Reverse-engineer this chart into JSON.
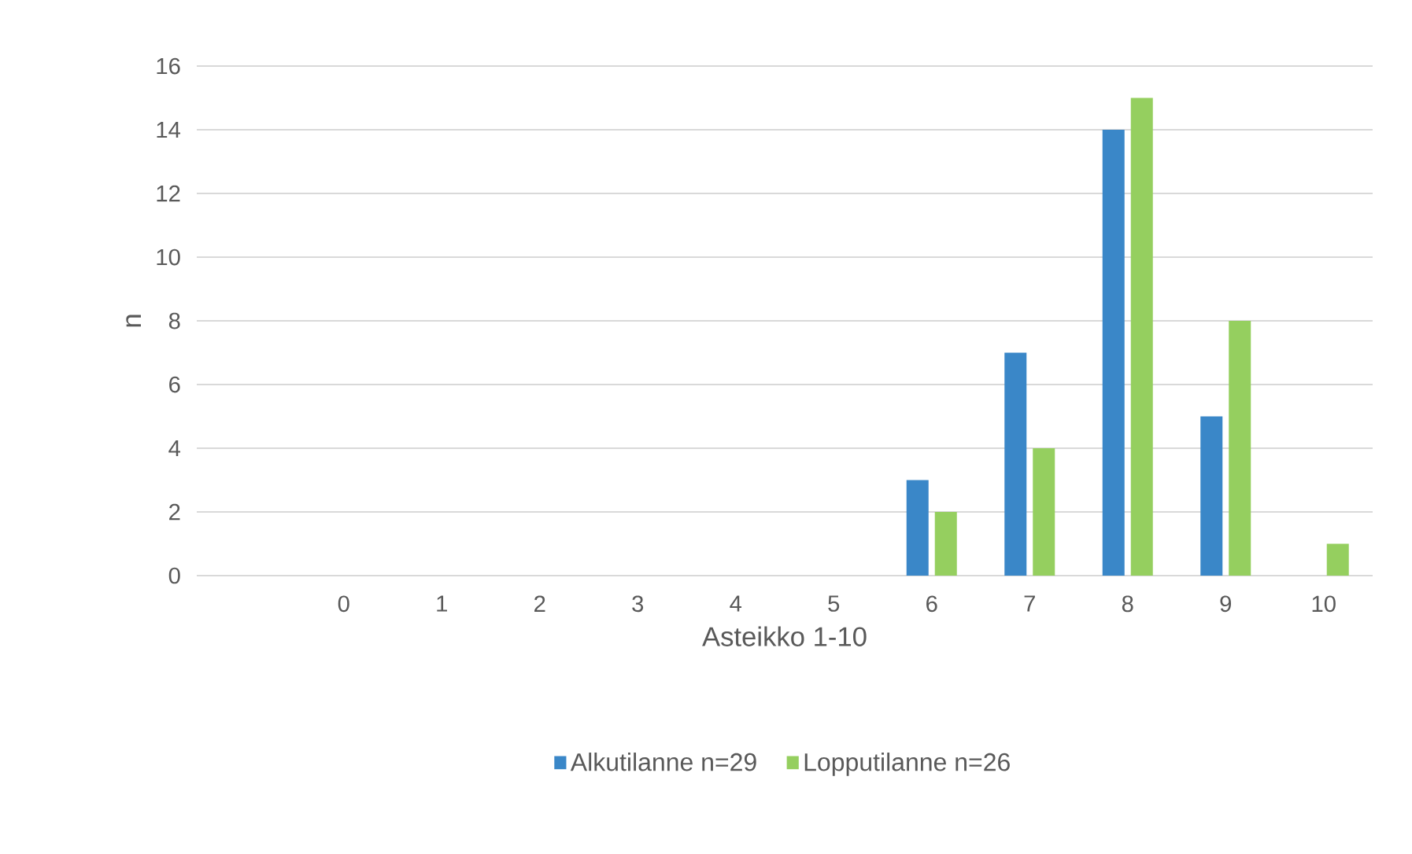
{
  "chart_data": {
    "type": "bar",
    "xlabel": "Asteikko 1-10",
    "ylabel": "n",
    "categories": [
      null,
      "0",
      "1",
      "2",
      "3",
      "4",
      "5",
      "6",
      "7",
      "8",
      "9",
      "10"
    ],
    "series": [
      {
        "name": "Alkutilanne n=29",
        "color": "#3a87c8",
        "values": [
          null,
          0,
          0,
          0,
          0,
          0,
          0,
          3,
          7,
          14,
          5,
          0
        ]
      },
      {
        "name": "Lopputilanne n=26",
        "color": "#95cf5f",
        "values": [
          null,
          0,
          0,
          0,
          0,
          0,
          0,
          2,
          4,
          15,
          8,
          1
        ]
      }
    ],
    "ylim": [
      0,
      16
    ],
    "yticks": [
      0,
      2,
      4,
      6,
      8,
      10,
      12,
      14,
      16
    ],
    "grid": "y",
    "legend": "bottom"
  }
}
